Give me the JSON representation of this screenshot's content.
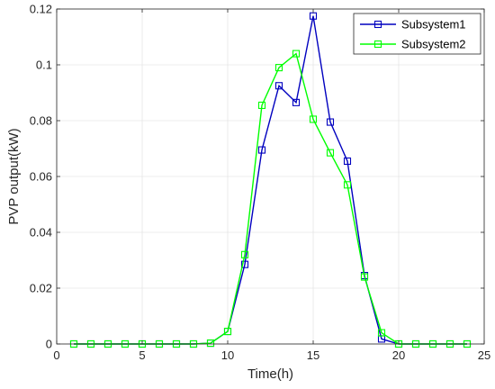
{
  "chart_data": {
    "type": "line",
    "xlabel": "Time(h)",
    "ylabel": "PVP output(kW)",
    "xlim": [
      0,
      25
    ],
    "ylim": [
      0,
      0.12
    ],
    "xticks": [
      0,
      5,
      10,
      15,
      20,
      25
    ],
    "yticks": [
      0,
      0.02,
      0.04,
      0.06,
      0.08,
      0.1,
      0.12
    ],
    "ytick_labels": [
      "0",
      "0.02",
      "0.04",
      "0.06",
      "0.08",
      "0.1",
      "0.12"
    ],
    "grid": true,
    "legend_position": "top-right",
    "x": [
      1,
      2,
      3,
      4,
      5,
      6,
      7,
      8,
      9,
      10,
      11,
      12,
      13,
      14,
      15,
      16,
      17,
      18,
      19,
      20,
      21,
      22,
      23,
      24
    ],
    "series": [
      {
        "name": "Subsystem1",
        "color": "#0000bf",
        "marker": "square",
        "values": [
          0,
          0,
          0,
          0,
          0,
          0,
          0,
          0,
          0.0003,
          0.0045,
          0.0285,
          0.0695,
          0.0925,
          0.0865,
          0.1175,
          0.0795,
          0.0655,
          0.0245,
          0.0018,
          0,
          0,
          0,
          0,
          0
        ]
      },
      {
        "name": "Subsystem2",
        "color": "#00ff00",
        "marker": "square",
        "values": [
          0,
          0,
          0,
          0,
          0,
          0,
          0,
          0,
          0.0003,
          0.0045,
          0.032,
          0.0855,
          0.099,
          0.104,
          0.0805,
          0.0685,
          0.057,
          0.024,
          0.004,
          0,
          0,
          0,
          0,
          0
        ]
      }
    ]
  }
}
